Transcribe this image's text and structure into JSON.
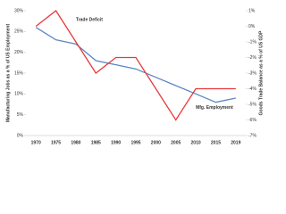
{
  "chart_data": {
    "type": "line",
    "categories": [
      "1970",
      "1975",
      "1980",
      "1985",
      "1990",
      "1995",
      "2000",
      "2005",
      "2010",
      "2015",
      "2019"
    ],
    "y_label": "Manufacturing Jobs as a % of US Employment",
    "y2_label": "Goods Trade Balance as a % of US GDP",
    "series": [
      {
        "name": "Mfg. Employment",
        "color": "#5b86c4",
        "values": [
          26,
          23,
          22,
          18,
          17,
          16,
          14,
          12,
          10,
          8,
          9
        ]
      },
      {
        "name": "Trade Deficit",
        "color": "#e83a3a",
        "axis": "y2",
        "values": [
          0,
          1,
          -1,
          -3,
          -2,
          -2,
          -4,
          -6,
          -4,
          -4,
          -4
        ]
      }
    ],
    "ylim": [
      0,
      30
    ],
    "yticks": [
      {
        "value": 0,
        "label": "0%"
      },
      {
        "value": 5,
        "label": "5%"
      },
      {
        "value": 10,
        "label": "10%"
      },
      {
        "value": 15,
        "label": "15%"
      },
      {
        "value": 20,
        "label": "20%"
      },
      {
        "value": 25,
        "label": "25%"
      },
      {
        "value": 30,
        "label": "30%"
      }
    ],
    "y2lim": [
      -7,
      1
    ],
    "y2ticks": [
      {
        "value": 1,
        "label": "1%"
      },
      {
        "value": 0,
        "label": "0%"
      },
      {
        "value": -1,
        "label": "-1%"
      },
      {
        "value": -2,
        "label": "-2%"
      },
      {
        "value": -3,
        "label": "-3%"
      },
      {
        "value": -4,
        "label": "-4%"
      },
      {
        "value": -5,
        "label": "-5%"
      },
      {
        "value": -6,
        "label": "-6%"
      },
      {
        "value": -7,
        "label": "-7%"
      }
    ]
  }
}
